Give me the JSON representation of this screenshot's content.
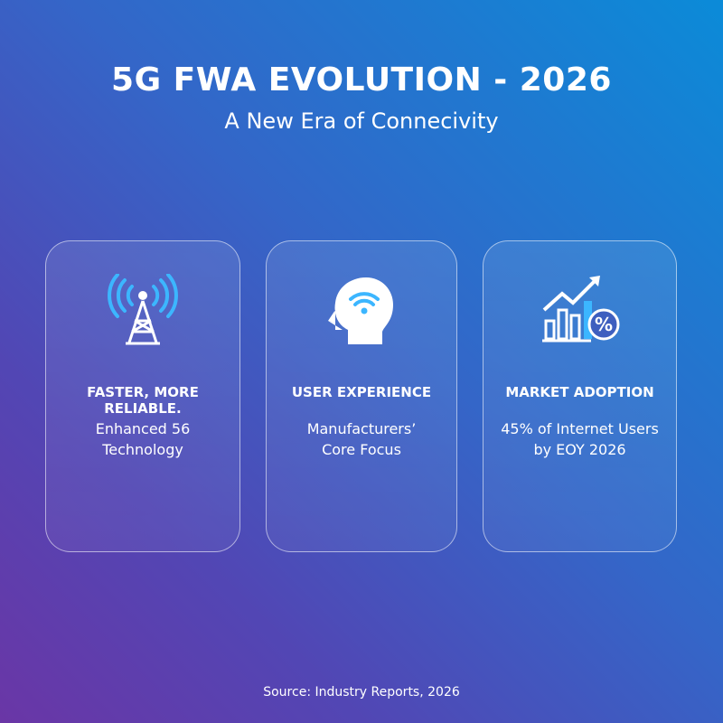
{
  "header": {
    "title": "5G FWA EVOLUTION - 2026",
    "subtitle": "A New Era of Connecivity"
  },
  "cards": [
    {
      "heading": "FASTER, MORE RELIABLE.",
      "body": [
        "Enhanced 56",
        "Technology"
      ]
    },
    {
      "heading": "USER EXPERIENCE",
      "body": [
        "Manufacturers’",
        "Core Focus"
      ]
    },
    {
      "heading": "MARKET ADOPTION",
      "body": [
        "45% of Internet Users",
        "by EOY 2026"
      ]
    }
  ],
  "footer": {
    "source": "Source: Industry Reports, 2026"
  }
}
